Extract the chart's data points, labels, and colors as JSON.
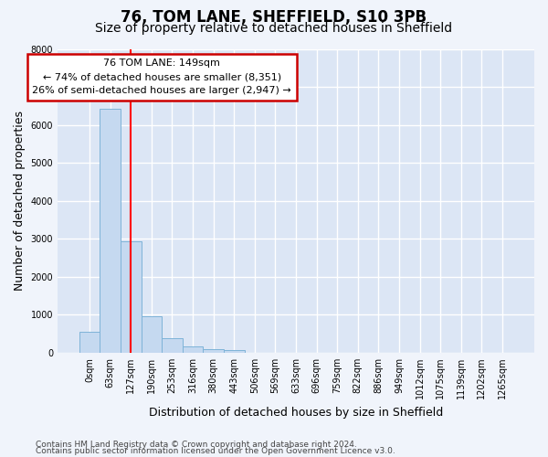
{
  "title": "76, TOM LANE, SHEFFIELD, S10 3PB",
  "subtitle": "Size of property relative to detached houses in Sheffield",
  "xlabel": "Distribution of detached houses by size in Sheffield",
  "ylabel": "Number of detached properties",
  "footer_line1": "Contains HM Land Registry data © Crown copyright and database right 2024.",
  "footer_line2": "Contains public sector information licensed under the Open Government Licence v3.0.",
  "bar_labels": [
    "0sqm",
    "63sqm",
    "127sqm",
    "190sqm",
    "253sqm",
    "316sqm",
    "380sqm",
    "443sqm",
    "506sqm",
    "569sqm",
    "633sqm",
    "696sqm",
    "759sqm",
    "822sqm",
    "886sqm",
    "949sqm",
    "1012sqm",
    "1075sqm",
    "1139sqm",
    "1202sqm",
    "1265sqm"
  ],
  "bar_values": [
    550,
    6430,
    2930,
    960,
    370,
    160,
    100,
    70,
    0,
    0,
    0,
    0,
    0,
    0,
    0,
    0,
    0,
    0,
    0,
    0,
    0
  ],
  "bar_color": "#c5d9f0",
  "bar_edge_color": "#7eb3d8",
  "plot_bg_color": "#dce6f5",
  "fig_bg_color": "#f0f4fb",
  "grid_color": "#ffffff",
  "ylim_max": 8000,
  "property_line_x": 2.0,
  "annotation_text": "76 TOM LANE: 149sqm\n← 74% of detached houses are smaller (8,351)\n26% of semi-detached houses are larger (2,947) →",
  "annotation_box_edgecolor": "#cc0000",
  "title_fontsize": 12,
  "subtitle_fontsize": 10,
  "axis_label_fontsize": 9,
  "tick_fontsize": 7,
  "annotation_fontsize": 8,
  "footer_fontsize": 6.5
}
